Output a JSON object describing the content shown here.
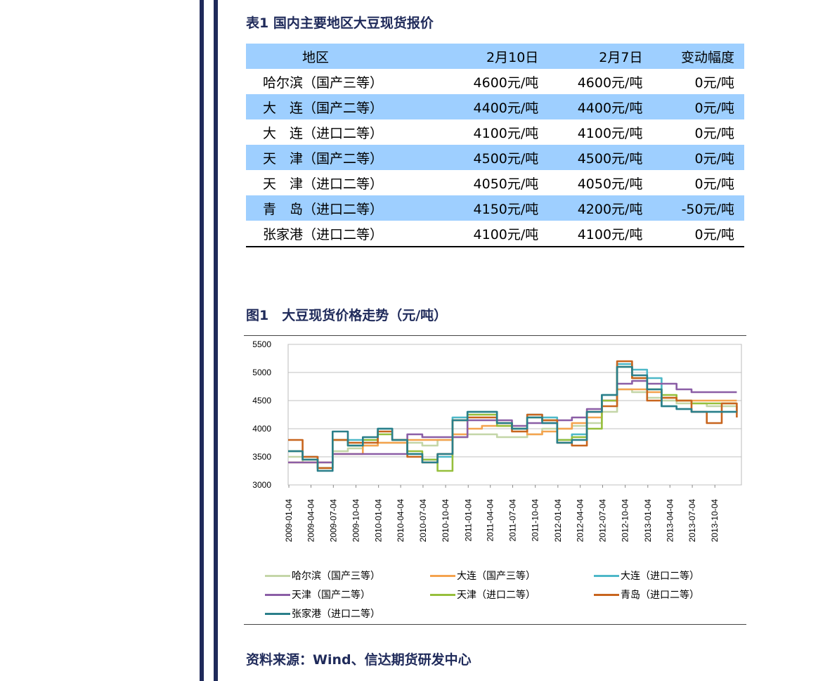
{
  "table": {
    "title": "表1  国内主要地区大豆现货报价",
    "headers": [
      "地区",
      "2月10日",
      "2月7日",
      "变动幅度"
    ],
    "rows": [
      [
        "哈尔滨（国产三等）",
        "4600元/吨",
        "4600元/吨",
        "0元/吨"
      ],
      [
        "大　连（国产二等）",
        "4400元/吨",
        "4400元/吨",
        "0元/吨"
      ],
      [
        "大　连（进口二等）",
        "4100元/吨",
        "4100元/吨",
        "0元/吨"
      ],
      [
        "天　津（国产二等）",
        "4500元/吨",
        "4500元/吨",
        "0元/吨"
      ],
      [
        "天　津（进口二等）",
        "4050元/吨",
        "4050元/吨",
        "0元/吨"
      ],
      [
        "青　岛（进口二等）",
        "4150元/吨",
        "4200元/吨",
        "-50元/吨"
      ],
      [
        "张家港（进口二等）",
        "4100元/吨",
        "4100元/吨",
        "0元/吨"
      ]
    ],
    "band_color": "#9ecfff"
  },
  "figure": {
    "title": "图1　大豆现货价格走势（元/吨）"
  },
  "source": "资料来源：Wind、信达期货研发中心",
  "chart_data": {
    "type": "line",
    "title": "",
    "xlabel": "",
    "ylabel": "",
    "ylim": [
      3000,
      5500
    ],
    "yticks": [
      "3000",
      "3500",
      "4000",
      "4500",
      "5000",
      "5500"
    ],
    "xticks": [
      "2009-01-04",
      "2009-04-04",
      "2009-07-04",
      "2009-10-04",
      "2010-01-04",
      "2010-04-04",
      "2010-07-04",
      "2010-10-04",
      "2011-01-04",
      "2011-04-04",
      "2011-07-04",
      "2011-10-04",
      "2012-01-04",
      "2012-04-04",
      "2012-07-04",
      "2012-10-04",
      "2013-01-04",
      "2013-04-04",
      "2013-07-04",
      "2013-10-04"
    ],
    "grid": true,
    "legend_position": "bottom",
    "x": [
      "2009-01",
      "2009-03",
      "2009-05",
      "2009-07",
      "2009-09",
      "2009-11",
      "2010-01",
      "2010-03",
      "2010-05",
      "2010-07",
      "2010-09",
      "2010-11",
      "2011-01",
      "2011-03",
      "2011-05",
      "2011-07",
      "2011-09",
      "2011-11",
      "2012-01",
      "2012-03",
      "2012-05",
      "2012-07",
      "2012-09",
      "2012-11",
      "2013-01",
      "2013-03",
      "2013-05",
      "2013-07",
      "2013-09",
      "2013-11",
      "2014-01"
    ],
    "series": [
      {
        "name": "哈尔滨（国产三等）",
        "color": "#c4d6a8",
        "values": [
          3500,
          3400,
          3300,
          3600,
          3650,
          3700,
          3750,
          3750,
          3750,
          3700,
          3800,
          3850,
          3900,
          3900,
          3850,
          3850,
          3900,
          4000,
          4000,
          4050,
          4100,
          4300,
          4700,
          4650,
          4550,
          4500,
          4450,
          4450,
          4400,
          4400,
          4400
        ]
      },
      {
        "name": "大连（国产三等）",
        "color": "#f4a34e",
        "values": [
          3400,
          3400,
          3400,
          3550,
          3550,
          3700,
          3750,
          3750,
          3800,
          3800,
          3800,
          3900,
          4000,
          4050,
          4050,
          4000,
          3900,
          3950,
          4000,
          4100,
          4200,
          4500,
          4700,
          4700,
          4650,
          4550,
          4500,
          4500,
          4500,
          4500,
          4500
        ]
      },
      {
        "name": "大连（进口二等）",
        "color": "#4db8c8",
        "values": [
          3600,
          3500,
          3300,
          3800,
          3800,
          3800,
          4000,
          3800,
          3550,
          3450,
          3500,
          4200,
          4300,
          4300,
          4100,
          4000,
          4250,
          4200,
          3800,
          3900,
          4300,
          4600,
          5150,
          5050,
          4900,
          4400,
          4350,
          4300,
          4300,
          4300,
          4400
        ]
      },
      {
        "name": "天津（国产二等）",
        "color": "#8b5ea6",
        "values": [
          3400,
          3400,
          3400,
          3550,
          3550,
          3550,
          3550,
          3550,
          3900,
          3850,
          3850,
          3850,
          4150,
          4150,
          4150,
          4050,
          4100,
          4100,
          4150,
          4200,
          4350,
          4500,
          4800,
          4850,
          4800,
          4800,
          4700,
          4650,
          4650,
          4650,
          4650
        ]
      },
      {
        "name": "天津（进口二等）",
        "color": "#96bf3c",
        "values": [
          3600,
          3450,
          3300,
          3800,
          3700,
          3800,
          3900,
          3800,
          3600,
          3450,
          3250,
          4150,
          4250,
          4250,
          4050,
          4000,
          4200,
          4150,
          3800,
          3850,
          4000,
          4500,
          5100,
          4900,
          4700,
          4600,
          4500,
          4450,
          4450,
          4450,
          4450
        ]
      },
      {
        "name": "青岛（进口二等）",
        "color": "#c8651e",
        "values": [
          3800,
          3500,
          3300,
          3800,
          3750,
          3750,
          3950,
          3800,
          3500,
          3400,
          3550,
          4150,
          4200,
          4200,
          4100,
          3950,
          4250,
          4150,
          3750,
          3700,
          4300,
          4400,
          5200,
          4900,
          4500,
          4550,
          4500,
          4300,
          4100,
          4450,
          4200
        ]
      },
      {
        "name": "张家港（进口二等）",
        "color": "#2a7f8a",
        "values": [
          3600,
          3450,
          3250,
          3950,
          3700,
          3850,
          4000,
          3800,
          3550,
          3400,
          3550,
          4150,
          4300,
          4300,
          4100,
          4000,
          4200,
          4100,
          3750,
          3800,
          4300,
          4600,
          5100,
          4950,
          4700,
          4400,
          4350,
          4300,
          4300,
          4300,
          4300
        ]
      }
    ]
  }
}
